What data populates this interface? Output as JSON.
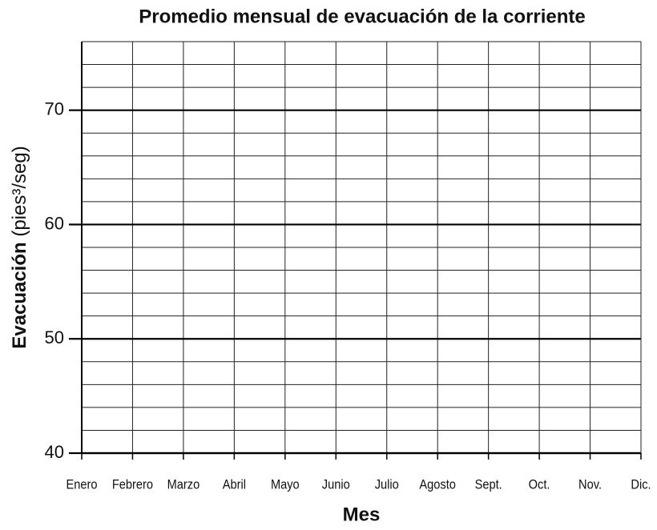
{
  "chart_data": {
    "type": "line",
    "title": "Promedio mensual de evacuación de la corriente",
    "x_label": "Mes",
    "y_label": "Evacuación",
    "y_label_unit": "(pies³/seg)",
    "categories": [
      "Enero",
      "Febrero",
      "Marzo",
      "Abril",
      "Mayo",
      "Junio",
      "Julio",
      "Agosto",
      "Sept.",
      "Oct.",
      "Nov.",
      "Dic."
    ],
    "series": [],
    "ylim": [
      40,
      76
    ],
    "yticks": [
      40,
      50,
      60,
      70
    ],
    "grid": true,
    "minor_grid_step": 2,
    "color": "#000000"
  }
}
